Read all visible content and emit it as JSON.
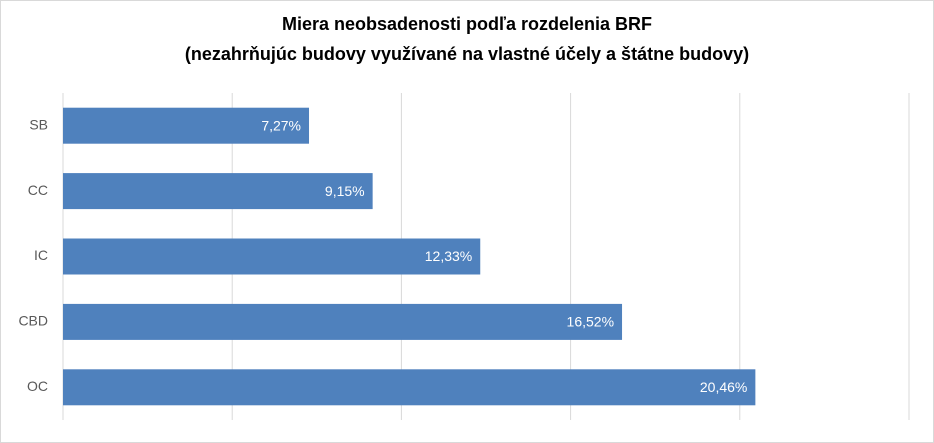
{
  "chart_data": {
    "type": "bar",
    "orientation": "horizontal",
    "title": "Miera  neobsadenosti  podľa rozdelenia  BRF",
    "subtitle": "(nezahrňujúc budovy využívané na vlastné účely a štátne budovy)",
    "categories": [
      "SB",
      "CC",
      "IC",
      "CBD",
      "OC"
    ],
    "values": [
      7.27,
      9.15,
      12.33,
      16.52,
      20.46
    ],
    "value_labels": [
      "7,27%",
      "9,15%",
      "12,33%",
      "16,52%",
      "20,46%"
    ],
    "color": "#4f81bd",
    "xlim": [
      0,
      25
    ],
    "xticks": [
      0,
      5,
      10,
      15,
      20,
      25
    ],
    "grid": true
  }
}
